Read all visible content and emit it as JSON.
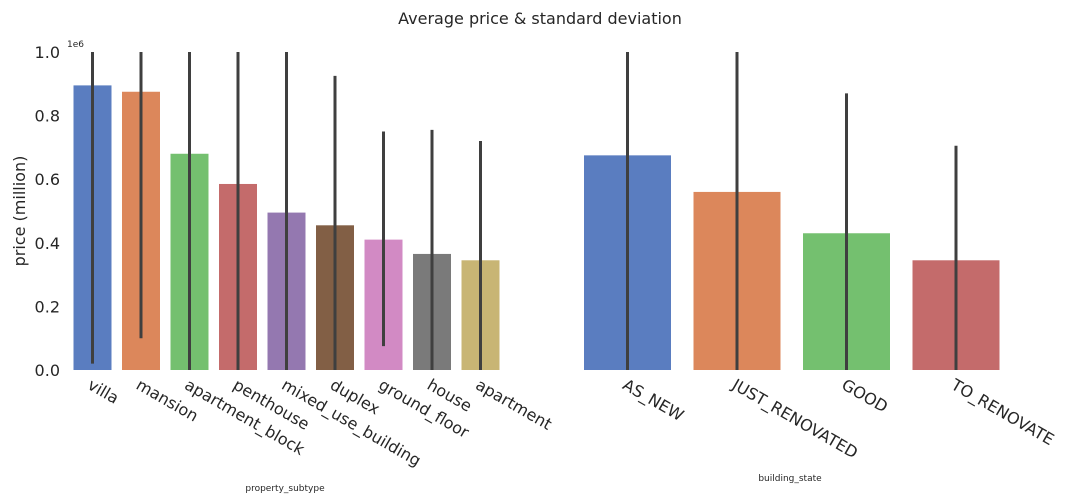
{
  "title": "Average price & standard deviation",
  "ylabel": "price (million)",
  "offset_label": "1e6",
  "chart_data": [
    {
      "type": "bar",
      "xlabel": "property_subtype",
      "ylabel": "price (million)",
      "ylim": [
        0,
        1.0
      ],
      "yticks": [
        "0.0",
        "0.2",
        "0.4",
        "0.6",
        "0.8",
        "1.0"
      ],
      "grid": false,
      "categories": [
        "villa",
        "mansion",
        "apartment_block",
        "penthouse",
        "mixed_use_building",
        "duplex",
        "ground_floor",
        "house",
        "apartment"
      ],
      "values": [
        0.895,
        0.875,
        0.68,
        0.585,
        0.495,
        0.455,
        0.41,
        0.365,
        0.345
      ],
      "error_low": [
        0.02,
        0.1,
        0.0,
        0.0,
        0.0,
        0.0,
        0.075,
        0.0,
        0.0
      ],
      "error_high": [
        1.0,
        1.0,
        1.0,
        1.0,
        1.0,
        0.925,
        0.75,
        0.755,
        0.72
      ],
      "colors": [
        "#5a7dc0",
        "#dc875b",
        "#74c06f",
        "#c46b6b",
        "#9478b0",
        "#825f45",
        "#d28ac4",
        "#7a7a7a",
        "#c8b574"
      ]
    },
    {
      "type": "bar",
      "xlabel": "building_state",
      "ylim": [
        0,
        1.0
      ],
      "grid": false,
      "categories": [
        "AS_NEW",
        "JUST_RENOVATED",
        "GOOD",
        "TO_RENOVATE"
      ],
      "values": [
        0.675,
        0.56,
        0.43,
        0.345
      ],
      "error_low": [
        0.0,
        0.0,
        0.0,
        0.0
      ],
      "error_high": [
        1.0,
        1.0,
        0.87,
        0.705
      ],
      "colors": [
        "#5a7dc0",
        "#dc875b",
        "#74c06f",
        "#c46b6b"
      ]
    }
  ]
}
